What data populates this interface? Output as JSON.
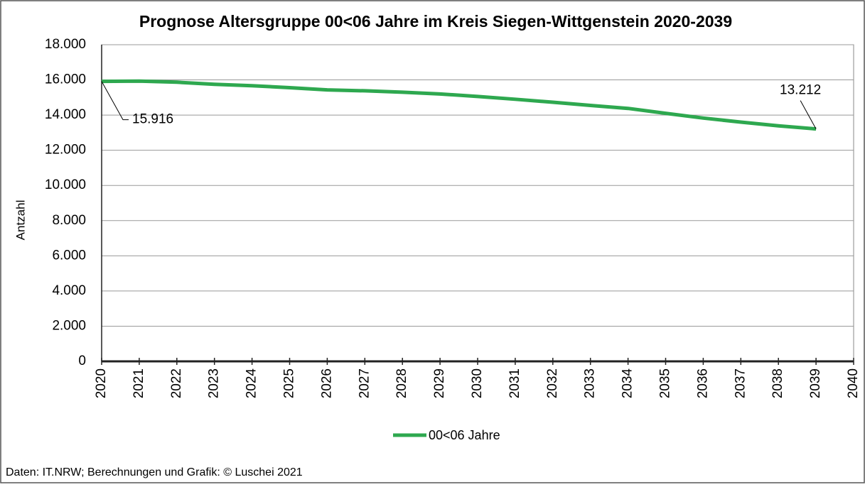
{
  "chart_data": {
    "type": "line",
    "title": "Prognose Altersgruppe 00<06 Jahre im Kreis Siegen-Wittgenstein 2020-2039",
    "ylabel": "Antzahl",
    "source": "Daten: IT.NRW; Berechnungen und Grafik: © Luschei 2021",
    "x": [
      2020,
      2021,
      2022,
      2023,
      2024,
      2025,
      2026,
      2027,
      2028,
      2029,
      2030,
      2031,
      2032,
      2033,
      2034,
      2035,
      2036,
      2037,
      2038,
      2039
    ],
    "series": [
      {
        "name": "00<06 Jahre",
        "color": "#2ea84f",
        "values": [
          15916,
          15930,
          15870,
          15750,
          15670,
          15560,
          15430,
          15380,
          15300,
          15200,
          15060,
          14900,
          14730,
          14550,
          14380,
          14100,
          13830,
          13600,
          13390,
          13212
        ],
        "value_labels": [
          "15.916",
          null,
          null,
          null,
          null,
          null,
          null,
          null,
          null,
          null,
          null,
          null,
          null,
          null,
          null,
          null,
          null,
          null,
          null,
          "13.212"
        ]
      }
    ],
    "xlim": [
      2020,
      2040
    ],
    "xticks": [
      2020,
      2021,
      2022,
      2023,
      2024,
      2025,
      2026,
      2027,
      2028,
      2029,
      2030,
      2031,
      2032,
      2033,
      2034,
      2035,
      2036,
      2037,
      2038,
      2039,
      2040
    ],
    "ylim": [
      0,
      18000
    ],
    "yticks": [
      {
        "value": 0,
        "label": "0"
      },
      {
        "value": 2000,
        "label": "2.000"
      },
      {
        "value": 4000,
        "label": "4.000"
      },
      {
        "value": 6000,
        "label": "6.000"
      },
      {
        "value": 8000,
        "label": "8.000"
      },
      {
        "value": 10000,
        "label": "10.000"
      },
      {
        "value": 12000,
        "label": "12.000"
      },
      {
        "value": 14000,
        "label": "14.000"
      },
      {
        "value": 16000,
        "label": "16.000"
      },
      {
        "value": 18000,
        "label": "18.000"
      }
    ],
    "grid": true,
    "legend": "bottom"
  }
}
